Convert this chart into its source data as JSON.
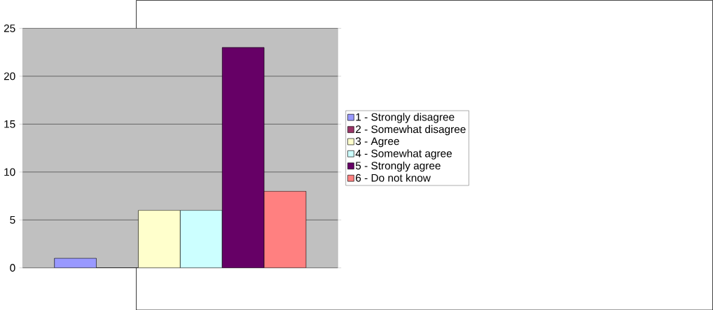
{
  "chart_data": {
    "type": "bar",
    "categories": [
      null
    ],
    "series": [
      {
        "name": "1 - Strongly disagree",
        "color": "#9999ff",
        "values": [
          1
        ]
      },
      {
        "name": "2 - Somewhat disagree",
        "color": "#993366",
        "values": [
          0
        ]
      },
      {
        "name": "3 - Agree",
        "color": "#ffffcc",
        "values": [
          6
        ]
      },
      {
        "name": "4 - Somewhat agree",
        "color": "#ccffff",
        "values": [
          6
        ]
      },
      {
        "name": "5 - Strongly agree",
        "color": "#660066",
        "values": [
          23
        ]
      },
      {
        "name": "6 - Do not know",
        "color": "#ff8080",
        "values": [
          8
        ]
      }
    ],
    "ylim": [
      0,
      25
    ],
    "yticks": [
      0,
      5,
      10,
      15,
      20,
      25
    ],
    "grid": "y",
    "legend": "right"
  }
}
